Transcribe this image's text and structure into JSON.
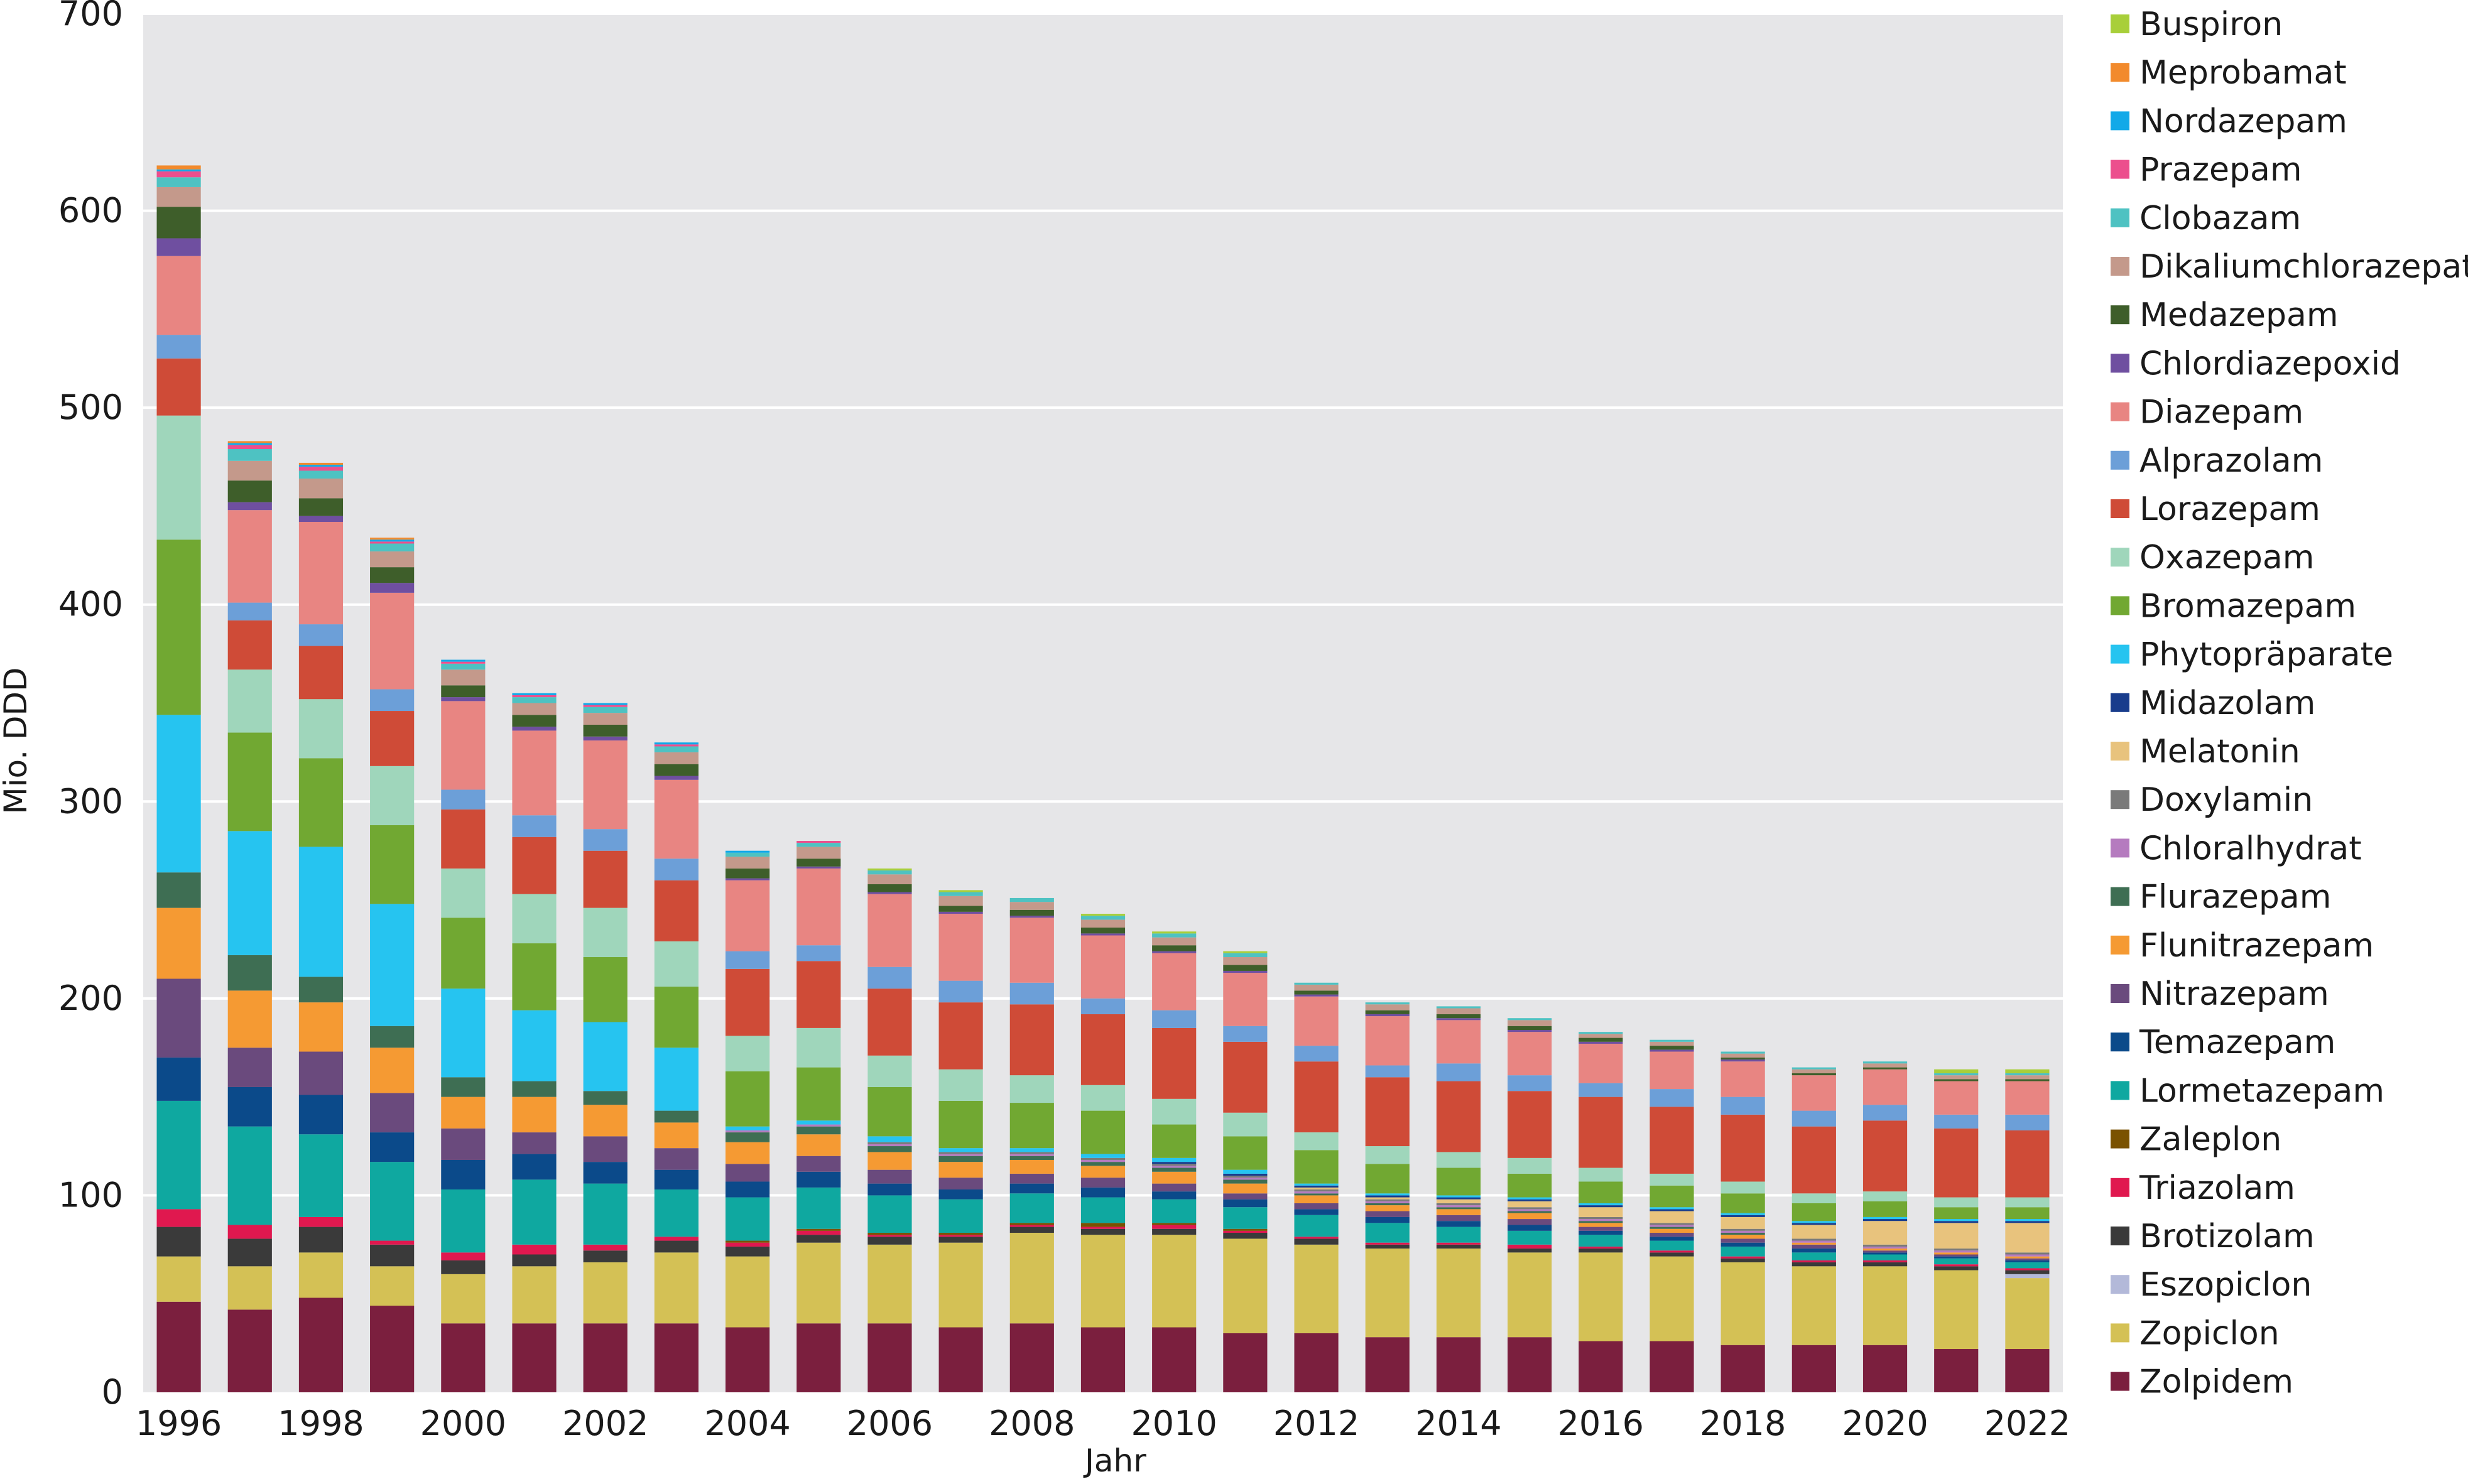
{
  "chart_data": {
    "type": "bar",
    "stacked": true,
    "title": "",
    "xlabel": "Jahr",
    "ylabel": "Mio. DDD",
    "ylim": [
      0,
      700
    ],
    "yticks": [
      0,
      100,
      200,
      300,
      400,
      500,
      600,
      700
    ],
    "xticks": [
      "1996",
      "1998",
      "2000",
      "2002",
      "2004",
      "2006",
      "2008",
      "2010",
      "2012",
      "2014",
      "2016",
      "2018",
      "2020",
      "2022"
    ],
    "grid": "horizontal",
    "background": "#e6e6e8",
    "legend_position": "right",
    "categories": [
      "1996",
      "1997",
      "1998",
      "1999",
      "2000",
      "2001",
      "2002",
      "2003",
      "2004",
      "2005",
      "2006",
      "2007",
      "2008",
      "2009",
      "2010",
      "2011",
      "2012",
      "2013",
      "2014",
      "2015",
      "2016",
      "2017",
      "2018",
      "2019",
      "2020",
      "2021",
      "2022"
    ],
    "series": [
      {
        "name": "Zolpidem",
        "color": "#7b1f3e",
        "values": [
          46,
          42,
          48,
          44,
          35,
          35,
          35,
          35,
          33,
          35,
          35,
          33,
          35,
          33,
          33,
          30,
          30,
          28,
          28,
          28,
          26,
          26,
          24,
          24,
          24,
          22,
          22
        ]
      },
      {
        "name": "Zopiclon",
        "color": "#d4c155",
        "values": [
          23,
          22,
          23,
          20,
          25,
          29,
          31,
          36,
          36,
          41,
          40,
          43,
          46,
          47,
          47,
          48,
          45,
          45,
          45,
          43,
          45,
          43,
          42,
          40,
          40,
          40,
          36
        ]
      },
      {
        "name": "Eszopiclon",
        "color": "#b3b9d9",
        "values": [
          0,
          0,
          0,
          0,
          0,
          0,
          0,
          0,
          0,
          0,
          0,
          0,
          0,
          0,
          0,
          0,
          0,
          0,
          0,
          0,
          0,
          0,
          0,
          0,
          0,
          0,
          2
        ]
      },
      {
        "name": "Brotizolam",
        "color": "#3a3a3a",
        "values": [
          15,
          14,
          13,
          11,
          7,
          6,
          6,
          6,
          5,
          4,
          4,
          3,
          3,
          3,
          3,
          3,
          3,
          2,
          2,
          2,
          2,
          2,
          2,
          2,
          2,
          2,
          2
        ]
      },
      {
        "name": "Triazolam",
        "color": "#e0184f",
        "values": [
          9,
          7,
          5,
          2,
          4,
          5,
          3,
          2,
          2,
          2,
          1,
          1,
          1,
          1,
          2,
          1,
          1,
          1,
          1,
          2,
          1,
          1,
          1,
          1,
          1,
          1,
          1
        ]
      },
      {
        "name": "Zaleplon",
        "color": "#7a5200",
        "values": [
          0,
          0,
          0,
          0,
          0,
          0,
          0,
          0,
          1,
          1,
          1,
          1,
          1,
          2,
          1,
          1,
          0,
          0,
          0,
          0,
          0,
          0,
          0,
          0,
          0,
          0,
          0
        ]
      },
      {
        "name": "Lormetazepam",
        "color": "#0fa8a0",
        "values": [
          55,
          50,
          42,
          40,
          32,
          33,
          31,
          24,
          22,
          21,
          19,
          17,
          15,
          13,
          12,
          11,
          11,
          10,
          8,
          7,
          6,
          5,
          5,
          4,
          3,
          3,
          3
        ]
      },
      {
        "name": "Temazepam",
        "color": "#0b4a8a",
        "values": [
          22,
          20,
          20,
          15,
          15,
          13,
          11,
          10,
          8,
          8,
          6,
          5,
          5,
          5,
          4,
          4,
          3,
          3,
          3,
          3,
          2,
          2,
          2,
          2,
          1,
          1,
          1
        ]
      },
      {
        "name": "Nitrazepam",
        "color": "#6a4a7d",
        "values": [
          40,
          20,
          22,
          20,
          16,
          11,
          13,
          11,
          9,
          8,
          7,
          6,
          5,
          5,
          4,
          3,
          3,
          3,
          3,
          3,
          2,
          2,
          2,
          2,
          1,
          1,
          1
        ]
      },
      {
        "name": "Flunitrazepam",
        "color": "#f59a33",
        "values": [
          36,
          29,
          25,
          23,
          16,
          18,
          16,
          13,
          11,
          11,
          9,
          8,
          7,
          6,
          6,
          5,
          4,
          3,
          3,
          3,
          2,
          2,
          2,
          1,
          1,
          1,
          1
        ]
      },
      {
        "name": "Flurazepam",
        "color": "#3e6e53",
        "values": [
          18,
          18,
          13,
          11,
          10,
          8,
          7,
          6,
          5,
          4,
          3,
          3,
          2,
          2,
          2,
          2,
          1,
          1,
          1,
          1,
          1,
          1,
          1,
          0,
          0,
          0,
          0
        ]
      },
      {
        "name": "Chloralhydrat",
        "color": "#b57bbf",
        "values": [
          0,
          0,
          0,
          0,
          0,
          0,
          0,
          0,
          1,
          1,
          1,
          1,
          1,
          1,
          1,
          1,
          1,
          1,
          1,
          1,
          1,
          1,
          1,
          1,
          1,
          1,
          1
        ]
      },
      {
        "name": "Doxylamin",
        "color": "#7a7a7a",
        "values": [
          0,
          0,
          0,
          0,
          0,
          0,
          0,
          0,
          0,
          0,
          1,
          1,
          1,
          1,
          1,
          1,
          1,
          1,
          1,
          1,
          1,
          1,
          1,
          1,
          1,
          1,
          1
        ]
      },
      {
        "name": "Melatonin",
        "color": "#e8c37d",
        "values": [
          0,
          0,
          0,
          0,
          0,
          0,
          0,
          0,
          0,
          0,
          0,
          0,
          0,
          0,
          0,
          0,
          1,
          1,
          2,
          3,
          5,
          6,
          6,
          7,
          12,
          13,
          15
        ]
      },
      {
        "name": "Midazolam",
        "color": "#183c8c",
        "values": [
          0,
          0,
          0,
          0,
          0,
          0,
          0,
          0,
          0,
          0,
          0,
          0,
          0,
          0,
          1,
          1,
          1,
          1,
          1,
          1,
          1,
          1,
          1,
          1,
          1,
          1,
          1
        ]
      },
      {
        "name": "Phytopräparate",
        "color": "#26c4f0",
        "values": [
          80,
          63,
          66,
          62,
          45,
          36,
          35,
          32,
          2,
          2,
          3,
          2,
          2,
          2,
          2,
          2,
          1,
          1,
          1,
          1,
          1,
          1,
          1,
          1,
          1,
          1,
          1
        ]
      },
      {
        "name": "Bromazepam",
        "color": "#71a832",
        "values": [
          89,
          50,
          45,
          40,
          36,
          34,
          33,
          31,
          28,
          27,
          25,
          24,
          23,
          22,
          17,
          17,
          17,
          15,
          14,
          12,
          11,
          11,
          10,
          9,
          8,
          6,
          6
        ]
      },
      {
        "name": "Oxazepam",
        "color": "#9fd6bb",
        "values": [
          63,
          32,
          30,
          30,
          25,
          25,
          25,
          23,
          18,
          20,
          16,
          16,
          14,
          13,
          13,
          12,
          9,
          9,
          8,
          8,
          7,
          6,
          6,
          5,
          5,
          5,
          5
        ]
      },
      {
        "name": "Lorazepam",
        "color": "#cf4b37",
        "values": [
          29,
          25,
          27,
          28,
          30,
          29,
          29,
          31,
          34,
          34,
          34,
          34,
          36,
          36,
          36,
          36,
          36,
          35,
          36,
          34,
          36,
          34,
          34,
          34,
          36,
          35,
          34
        ]
      },
      {
        "name": "Alprazolam",
        "color": "#6c9fd8",
        "values": [
          12,
          9,
          11,
          11,
          10,
          11,
          11,
          11,
          9,
          8,
          11,
          11,
          11,
          8,
          9,
          8,
          8,
          6,
          9,
          8,
          7,
          9,
          9,
          8,
          8,
          7,
          8
        ]
      },
      {
        "name": "Diazepam",
        "color": "#e88582",
        "values": [
          40,
          47,
          52,
          49,
          45,
          43,
          45,
          40,
          36,
          39,
          37,
          34,
          33,
          32,
          29,
          27,
          25,
          25,
          22,
          22,
          20,
          19,
          18,
          18,
          18,
          17,
          17
        ]
      },
      {
        "name": "Chlordiazepoxid",
        "color": "#6f4fa0",
        "values": [
          9,
          4,
          3,
          5,
          2,
          2,
          2,
          2,
          1,
          1,
          1,
          1,
          1,
          1,
          1,
          1,
          1,
          1,
          1,
          1,
          1,
          1,
          1,
          0,
          0,
          0,
          0
        ]
      },
      {
        "name": "Medazepam",
        "color": "#3e5e2a",
        "values": [
          16,
          11,
          9,
          8,
          6,
          6,
          6,
          6,
          5,
          4,
          4,
          3,
          3,
          3,
          3,
          3,
          2,
          2,
          2,
          2,
          2,
          2,
          1,
          1,
          1,
          1,
          1
        ]
      },
      {
        "name": "Dikaliumchlorazepat",
        "color": "#c4998b",
        "values": [
          10,
          10,
          10,
          8,
          8,
          6,
          6,
          6,
          6,
          6,
          5,
          5,
          4,
          4,
          4,
          4,
          3,
          3,
          3,
          3,
          2,
          2,
          2,
          2,
          2,
          2,
          2
        ]
      },
      {
        "name": "Clobazam",
        "color": "#4ec2c2",
        "values": [
          5,
          6,
          4,
          4,
          3,
          3,
          3,
          3,
          2,
          2,
          2,
          2,
          2,
          2,
          2,
          2,
          1,
          1,
          1,
          1,
          1,
          1,
          1,
          1,
          1,
          1,
          1
        ]
      },
      {
        "name": "Prazepam",
        "color": "#ec4f8d",
        "values": [
          3,
          2,
          2,
          1,
          1,
          1,
          1,
          1,
          0,
          1,
          0,
          0,
          0,
          0,
          0,
          0,
          0,
          0,
          0,
          0,
          0,
          0,
          0,
          0,
          0,
          0,
          0
        ]
      },
      {
        "name": "Nordazepam",
        "color": "#12a9e8",
        "values": [
          1,
          1,
          1,
          1,
          1,
          1,
          1,
          1,
          1,
          0,
          0,
          0,
          0,
          0,
          0,
          0,
          0,
          0,
          0,
          0,
          0,
          0,
          0,
          0,
          0,
          0,
          0
        ]
      },
      {
        "name": "Meprobamat",
        "color": "#f28a2c",
        "values": [
          2,
          1,
          1,
          1,
          0,
          0,
          0,
          0,
          0,
          0,
          0,
          0,
          0,
          0,
          0,
          0,
          0,
          0,
          0,
          0,
          0,
          0,
          0,
          0,
          0,
          0,
          0
        ]
      },
      {
        "name": "Buspiron",
        "color": "#a8cf3a",
        "values": [
          0,
          0,
          0,
          0,
          0,
          0,
          0,
          0,
          0,
          0,
          1,
          1,
          0,
          1,
          1,
          1,
          0,
          0,
          0,
          0,
          0,
          0,
          0,
          0,
          0,
          2,
          2
        ]
      }
    ]
  }
}
